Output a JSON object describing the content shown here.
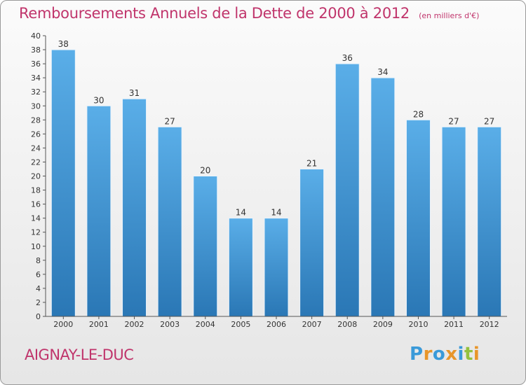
{
  "chart_data": {
    "type": "bar",
    "title": "Remboursements Annuels de la Dette de 2000 à 2012",
    "subtitle": "(en milliers d'€)",
    "categories": [
      "2000",
      "2001",
      "2002",
      "2003",
      "2004",
      "2005",
      "2006",
      "2007",
      "2008",
      "2009",
      "2010",
      "2011",
      "2012"
    ],
    "values": [
      38,
      30,
      31,
      27,
      20,
      14,
      14,
      21,
      36,
      34,
      28,
      27,
      27
    ],
    "ylim": [
      0,
      40
    ],
    "yticks": [
      0,
      2,
      4,
      6,
      8,
      10,
      12,
      14,
      16,
      18,
      20,
      22,
      24,
      26,
      28,
      30,
      32,
      34,
      36,
      38,
      40
    ],
    "grid": false,
    "xlabel": "",
    "ylabel": ""
  },
  "commune": "AIGNAY-LE-DUC",
  "logo": {
    "letters": [
      "P",
      "r",
      "o",
      "x",
      "i",
      "t",
      "i"
    ],
    "colors": [
      "#3a9ad9",
      "#e8962a",
      "#3a9ad9",
      "#e8962a",
      "#3a9ad9",
      "#93c13e",
      "#e8962a"
    ]
  },
  "colors": {
    "accent": "#c0346b",
    "bar_top": "#5aaee8",
    "bar_bottom": "#2a77b5"
  }
}
